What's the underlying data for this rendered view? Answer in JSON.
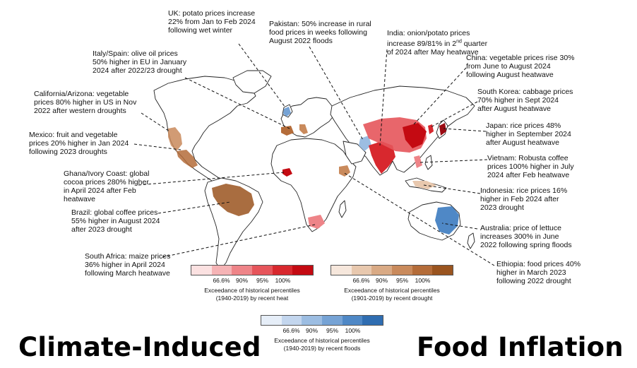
{
  "title_left": "Climate-Induced",
  "title_right": "Food Inflation",
  "annotations": {
    "uk": "UK: potato prices increase\n22% from Jan to Feb 2024\nfollowing wet winter",
    "pakistan": "Pakistan: 50% increase in rural\nfood prices in weeks following\nAugust 2022 floods",
    "india": "India: onion/potato prices\nincrease 89/81% in 2nd quarter\nof 2024 after May heatwave",
    "italy_spain": "Italy/Spain: olive oil prices\n50% higher in EU in January\n2024 after 2022/23 drought",
    "china": "China: vegetable prices rise 30%\nfrom June to August 2024\nfollowing August heatwave",
    "california": "California/Arizona: vegetable\nprices 80% higher in US in Nov\n2022 after western droughts",
    "south_korea": "South Korea: cabbage prices\n70% higher in Sept 2024\nafter August heatwave",
    "mexico": "Mexico: fruit and vegetable\nprices 20% higher in Jan 2024\nfollowing 2023 droughts",
    "japan": "Japan: rice prices 48%\nhigher in September 2024\nafter August heatwave",
    "ghana": "Ghana/Ivory Coast: global\ncocoa prices 280% higher\nin April 2024 after Feb\nheatwave",
    "vietnam": "Vietnam: Robusta coffee\nprices 100% higher in July\n2024 after Feb heatwave",
    "indonesia": "Indonesia: rice prices 16%\nhigher in Feb 2024 after\n2023 drought",
    "brazil": "Brazil: global coffee prices\n55% higher in August 2024\nafter 2023 drought",
    "australia": "Australia: price of lettuce\nincreases 300% in June\n2022 following spring floods",
    "south_africa": "South Africa: maize prices\n36% higher in April 2024\nfollowing March heatwave",
    "ethiopia": "Ethiopia: food prices 40%\nhigher in March 2023\nfollowing 2022 drought"
  },
  "legends": {
    "heat": {
      "ticks": [
        "66.6%",
        "90%",
        "95%",
        "100%"
      ],
      "caption": "Exceedance of historical percentiles\n(1940-2019) by recent heat",
      "colors": [
        "#fbe1e1",
        "#f5b3b5",
        "#ee8488",
        "#e6555b",
        "#d8282e",
        "#c40a12"
      ]
    },
    "drought": {
      "ticks": [
        "66.6%",
        "90%",
        "95%",
        "100%"
      ],
      "caption": "Exceedance of historical percentiles\n(1901-2019) by recent drought",
      "colors": [
        "#f6e7dc",
        "#e8c8ae",
        "#d9aa85",
        "#c98a5c",
        "#b46c39",
        "#9a541f"
      ]
    },
    "floods": {
      "ticks": [
        "66.6%",
        "90%",
        "95%",
        "100%"
      ],
      "caption": "Exceedance of historical percentiles\n(1940-2019) by recent floods",
      "colors": [
        "#e6eef8",
        "#c3d6ee",
        "#9cbde2",
        "#76a3d5",
        "#4f88c6",
        "#2f6db1"
      ]
    }
  }
}
